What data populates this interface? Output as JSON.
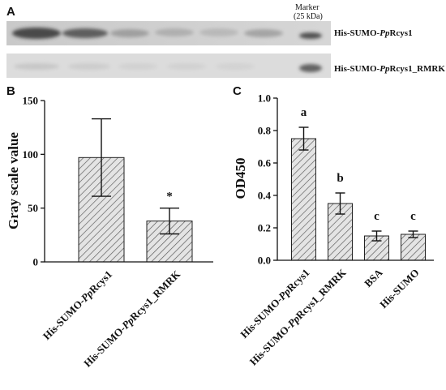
{
  "panel_a": {
    "letter": "A",
    "marker": {
      "line1": "Marker",
      "line2": "(25 kDa)"
    },
    "lanes": [
      {
        "label_prefix": "His-SUMO-",
        "label_italic": "Pp",
        "label_suffix": "Rcys1"
      },
      {
        "label_prefix": "His-SUMO-",
        "label_italic": "Pp",
        "label_suffix": "Rcys1_RMRK"
      }
    ]
  },
  "chart_data": [
    {
      "panel": "B",
      "type": "bar",
      "categories": [
        {
          "prefix": "His-SUMO-",
          "italic": "Pp",
          "suffix": "Rcys1"
        },
        {
          "prefix": "His-SUMO-",
          "italic": "Pp",
          "suffix": "Rcys1_RMRK"
        }
      ],
      "values": [
        97,
        38
      ],
      "errors": [
        36,
        12
      ],
      "annotations": [
        "",
        "*"
      ],
      "ylabel": "Gray scale value",
      "ylim": [
        0,
        150
      ],
      "yticks": [
        "0",
        "50",
        "100",
        "150"
      ],
      "grid": false,
      "bar_fill": "hatched"
    },
    {
      "panel": "C",
      "type": "bar",
      "categories": [
        {
          "prefix": "His-SUMO-",
          "italic": "Pp",
          "suffix": "Rcys1"
        },
        {
          "prefix": "His-SUMO-",
          "italic": "Pp",
          "suffix": "Rcys1_RMRK"
        },
        {
          "prefix": "BSA",
          "italic": "",
          "suffix": ""
        },
        {
          "prefix": "His-SUMO",
          "italic": "",
          "suffix": ""
        }
      ],
      "values": [
        0.75,
        0.35,
        0.15,
        0.16
      ],
      "errors": [
        0.07,
        0.065,
        0.03,
        0.02
      ],
      "annotations": [
        "a",
        "b",
        "c",
        "c"
      ],
      "ylabel": "OD450",
      "ylim": [
        0,
        1.0
      ],
      "yticks": [
        "0.0",
        "0.2",
        "0.4",
        "0.6",
        "0.8",
        "1.0"
      ],
      "grid": false,
      "bar_fill": "hatched"
    }
  ]
}
